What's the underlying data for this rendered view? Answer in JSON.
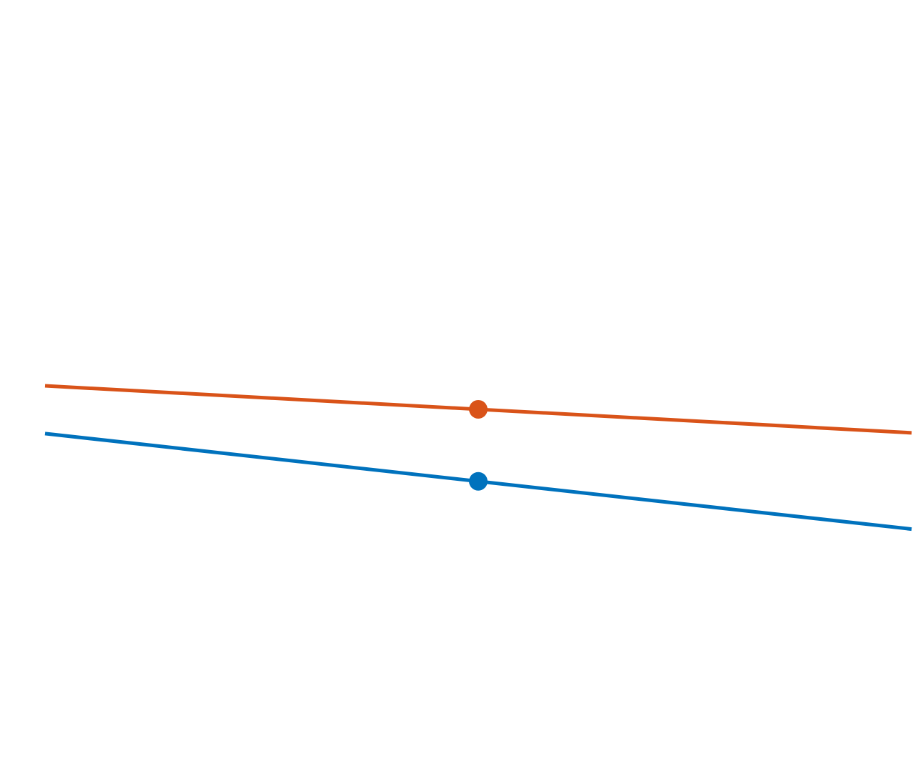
{
  "chart_data": {
    "type": "line",
    "categories": [
      null,
      null,
      null
    ],
    "series": [
      {
        "color": "#d95319",
        "values": [
          49.1,
          46.0,
          42.9
        ]
      },
      {
        "color": "#0072bd",
        "values": [
          42.8,
          36.5,
          30.2
        ]
      }
    ],
    "ylim": [
      0,
      100
    ]
  }
}
